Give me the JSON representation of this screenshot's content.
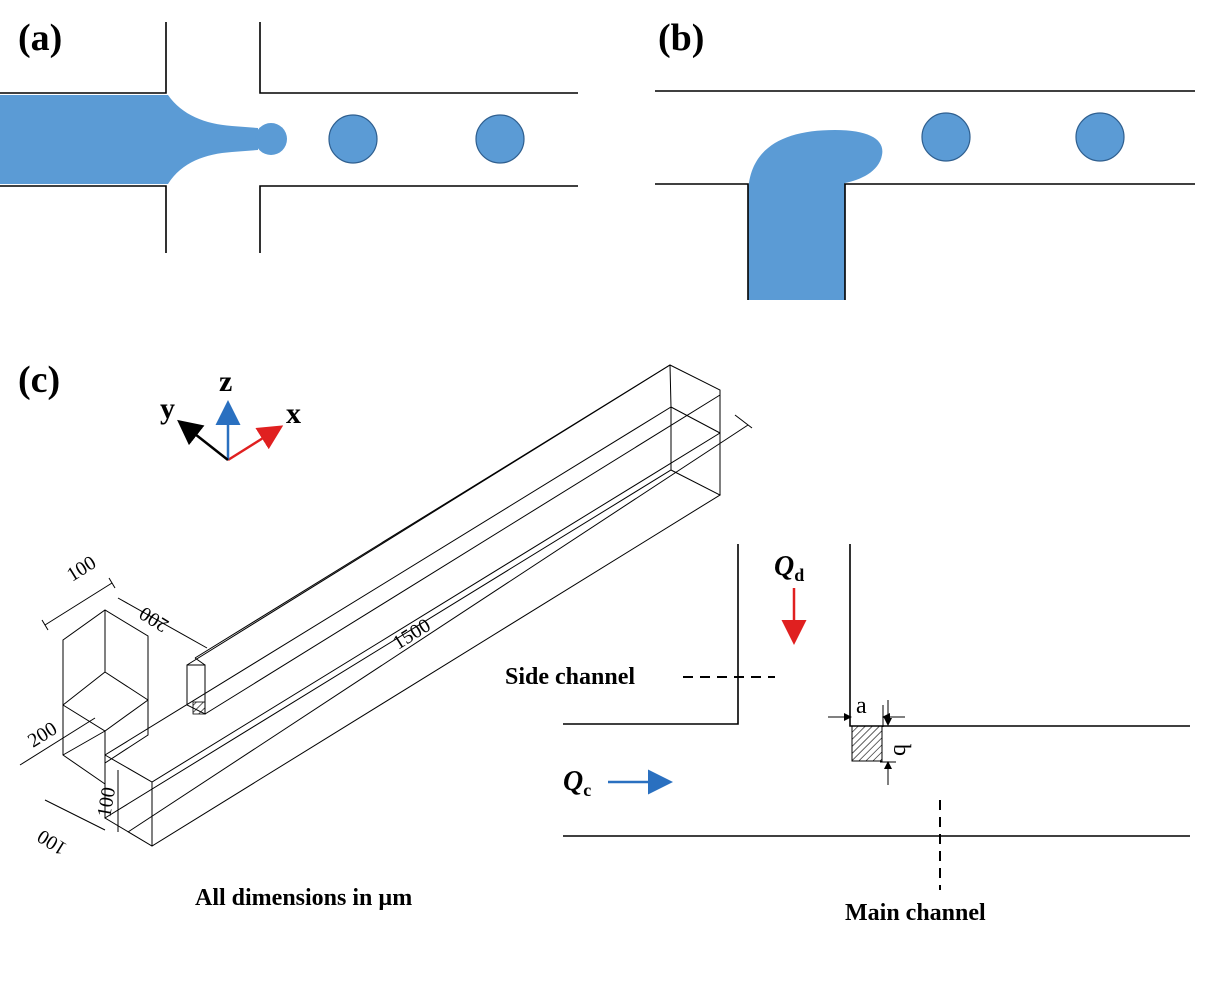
{
  "panels": {
    "a": {
      "label": "(a)"
    },
    "b": {
      "label": "(b)"
    },
    "c": {
      "label": "(c)"
    }
  },
  "axes": {
    "x": "x",
    "y": "y",
    "z": "z"
  },
  "dimensions": {
    "d100_top": "100",
    "d200_top": "200",
    "d1500": "1500",
    "d200_left": "200",
    "d100_bottom": "100",
    "d100_side": "100"
  },
  "caption": "All dimensions in µm",
  "labels": {
    "side_channel": "Side channel",
    "main_channel": "Main channel",
    "qd_symbol": "Q",
    "qd_sub": "d",
    "qc_symbol": "Q",
    "qc_sub": "c",
    "a": "a",
    "b": "b"
  },
  "colors": {
    "fluid": "#5b9bd5",
    "x_axis": "#e02020",
    "y_axis": "#000000",
    "z_axis": "#2a70c0",
    "qd_arrow": "#e02020",
    "qc_arrow": "#2a70c0"
  }
}
